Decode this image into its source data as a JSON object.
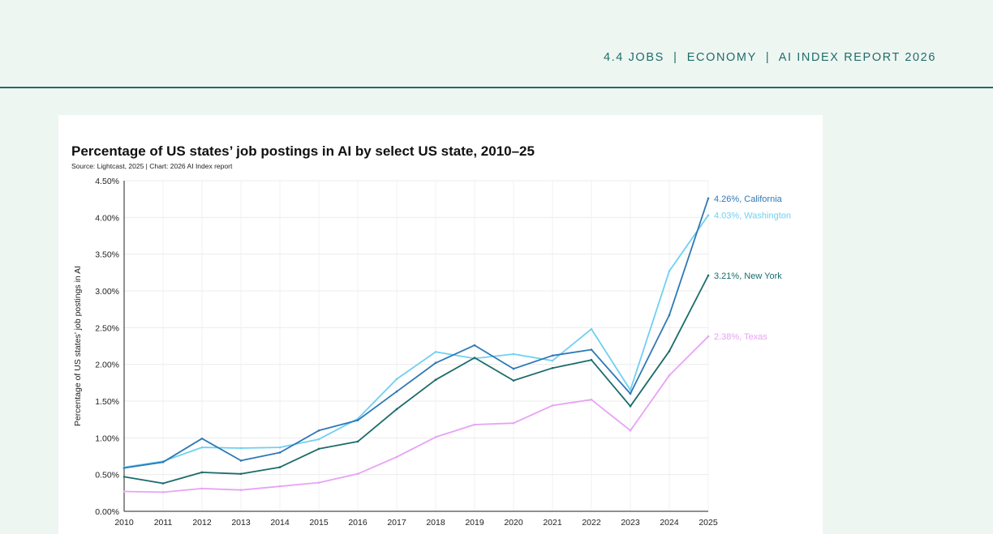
{
  "header": {
    "section": "4.4 JOBS",
    "chapter": "ECONOMY",
    "report": "AI INDEX REPORT 2026",
    "separator": "|"
  },
  "chart_data": {
    "type": "line",
    "title": "Percentage of US states’ job postings in AI by select US state, 2010–25",
    "subtitle": "Source: Lightcast, 2025 | Chart: 2026 AI Index report",
    "xlabel": "",
    "ylabel": "Percentage of US states’ job postings in AI",
    "x": [
      2010,
      2011,
      2012,
      2013,
      2014,
      2015,
      2016,
      2017,
      2018,
      2019,
      2020,
      2021,
      2022,
      2023,
      2024,
      2025
    ],
    "ylim": [
      0,
      4.5
    ],
    "yticks": [
      "0.00%",
      "0.50%",
      "1.00%",
      "1.50%",
      "2.00%",
      "2.50%",
      "3.00%",
      "3.50%",
      "4.00%",
      "4.50%"
    ],
    "grid": true,
    "series": [
      {
        "name": "Washington",
        "color": "#6fd0f2",
        "end_label": "4.03%, Washington",
        "values": [
          0.6,
          0.68,
          0.87,
          0.86,
          0.87,
          0.98,
          1.26,
          1.8,
          2.17,
          2.08,
          2.14,
          2.05,
          2.48,
          1.65,
          3.27,
          4.03
        ]
      },
      {
        "name": "California",
        "color": "#2f78b5",
        "end_label": "4.26%, California",
        "values": [
          0.59,
          0.67,
          0.99,
          0.69,
          0.8,
          1.1,
          1.24,
          1.63,
          2.02,
          2.26,
          1.94,
          2.12,
          2.2,
          1.6,
          2.67,
          4.26
        ]
      },
      {
        "name": "New York",
        "color": "#1c6b6b",
        "end_label": "3.21%, New York",
        "values": [
          0.47,
          0.38,
          0.53,
          0.51,
          0.6,
          0.85,
          0.95,
          1.39,
          1.79,
          2.09,
          1.78,
          1.95,
          2.06,
          1.43,
          2.18,
          3.21
        ]
      },
      {
        "name": "Texas",
        "color": "#e7a3f5",
        "end_label": "2.38%, Texas",
        "values": [
          0.27,
          0.26,
          0.31,
          0.29,
          0.34,
          0.39,
          0.51,
          0.74,
          1.01,
          1.18,
          1.2,
          1.44,
          1.52,
          1.1,
          1.85,
          2.38
        ]
      }
    ]
  }
}
